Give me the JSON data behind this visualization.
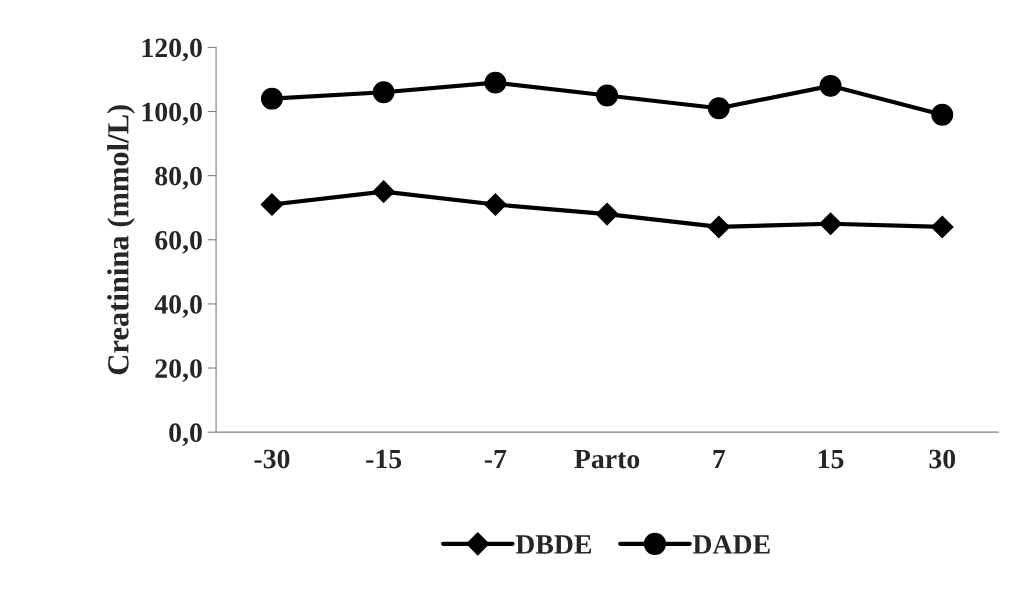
{
  "chart_data": {
    "type": "line",
    "ylabel": "Creatinina (mmol/L)",
    "categories": [
      "-30",
      "-15",
      "-7",
      "Parto",
      "7",
      "15",
      "30"
    ],
    "series": [
      {
        "name": "DBDE",
        "color": "#000000",
        "marker": "diamond",
        "values": [
          71,
          75,
          71,
          68,
          64,
          65,
          64
        ]
      },
      {
        "name": "DADE",
        "color": "#000000",
        "marker": "circle",
        "values": [
          104,
          106,
          109,
          105,
          101,
          108,
          99
        ]
      }
    ],
    "ylim": [
      0,
      120
    ],
    "yticks": [
      {
        "value": 0,
        "label": "0,0"
      },
      {
        "value": 20,
        "label": "20,0"
      },
      {
        "value": 40,
        "label": "40,0"
      },
      {
        "value": 60,
        "label": "60,0"
      },
      {
        "value": 80,
        "label": "80,0"
      },
      {
        "value": 100,
        "label": "100,0"
      },
      {
        "value": 120,
        "label": "120,0"
      }
    ],
    "grid": false,
    "legend": "bottom"
  }
}
